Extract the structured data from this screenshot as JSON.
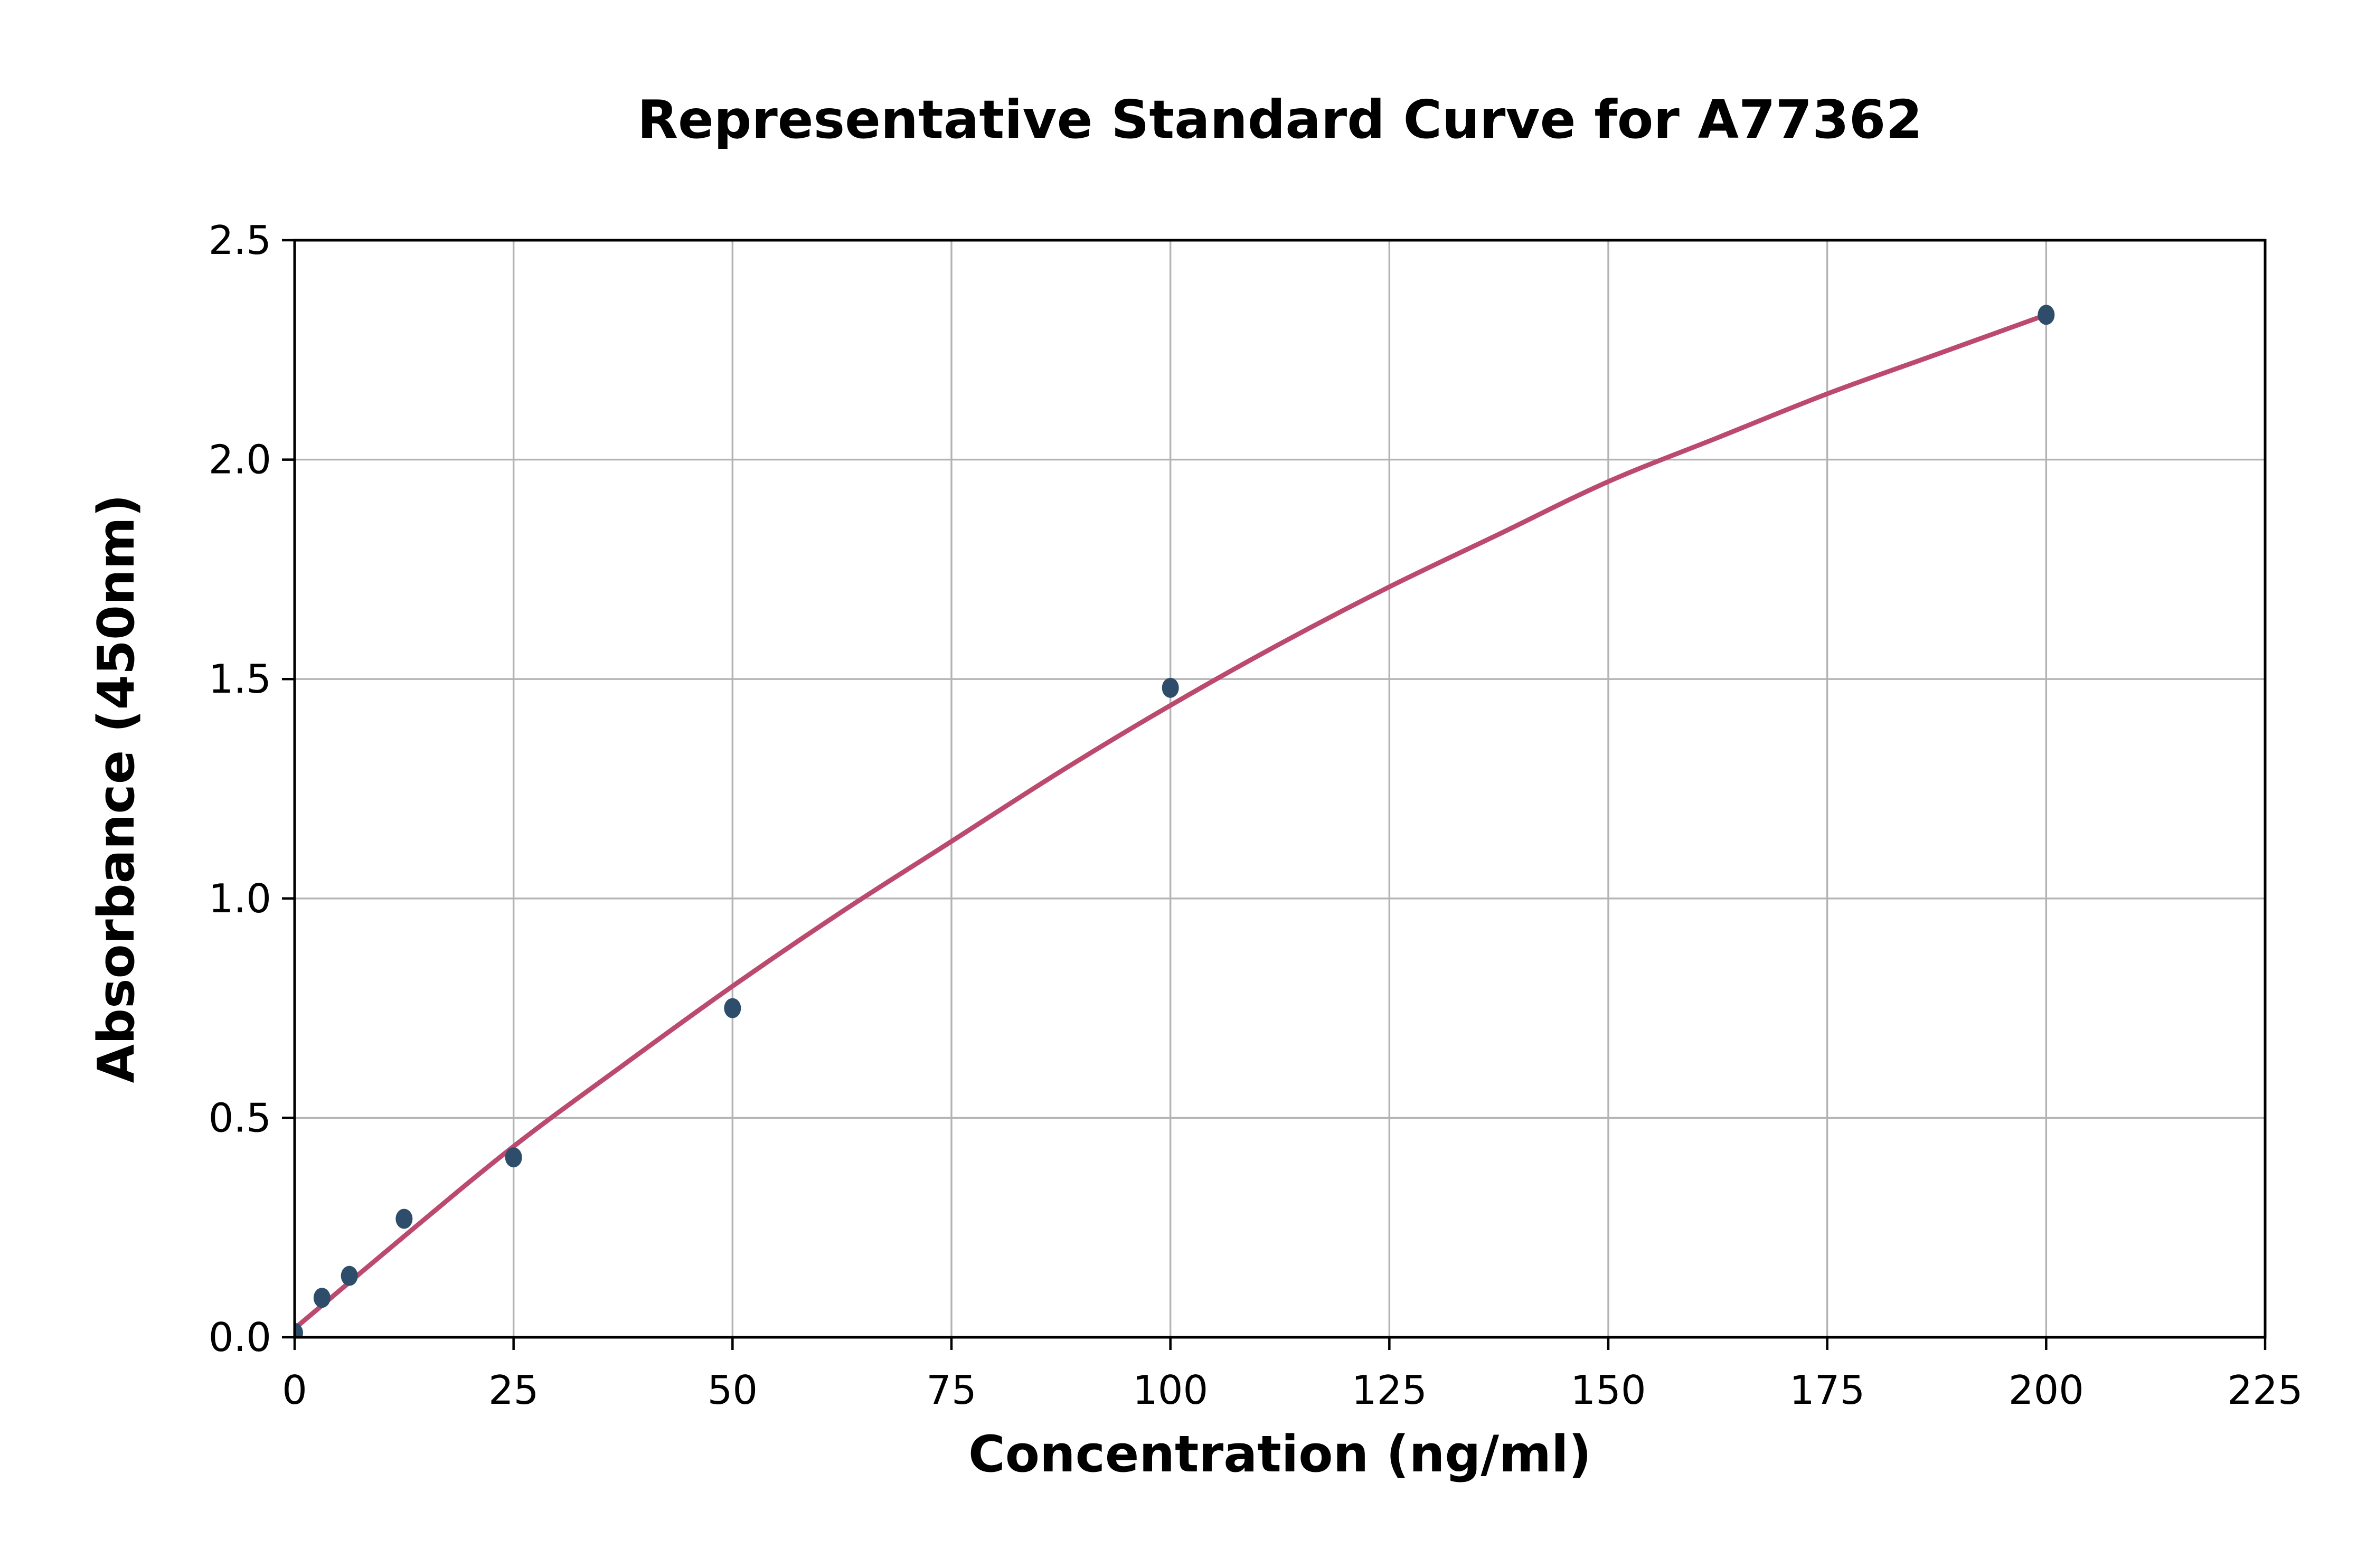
{
  "chart_data": {
    "type": "scatter",
    "title": "Representative Standard Curve for A77362",
    "xlabel": "Concentration (ng/ml)",
    "ylabel": "Absorbance (450nm)",
    "xlim": [
      0,
      225
    ],
    "ylim": [
      0,
      2.5
    ],
    "grid": true,
    "legend": null,
    "x_ticks": [
      {
        "v": 0,
        "label": "0"
      },
      {
        "v": 25,
        "label": "25"
      },
      {
        "v": 50,
        "label": "50"
      },
      {
        "v": 75,
        "label": "75"
      },
      {
        "v": 100,
        "label": "100"
      },
      {
        "v": 125,
        "label": "125"
      },
      {
        "v": 150,
        "label": "150"
      },
      {
        "v": 175,
        "label": "175"
      },
      {
        "v": 200,
        "label": "200"
      },
      {
        "v": 225,
        "label": "225"
      }
    ],
    "y_ticks": [
      {
        "v": 0.0,
        "label": "0.0"
      },
      {
        "v": 0.5,
        "label": "0.5"
      },
      {
        "v": 1.0,
        "label": "1.0"
      },
      {
        "v": 1.5,
        "label": "1.5"
      },
      {
        "v": 2.0,
        "label": "2.0"
      },
      {
        "v": 2.5,
        "label": "2.5"
      }
    ],
    "series": [
      {
        "name": "standard-points",
        "type": "scatter",
        "color": "#2e4d6b",
        "points": [
          [
            0,
            0.01
          ],
          [
            3.125,
            0.09
          ],
          [
            6.25,
            0.14
          ],
          [
            12.5,
            0.27
          ],
          [
            25,
            0.41
          ],
          [
            50,
            0.75
          ],
          [
            100,
            1.48
          ],
          [
            200,
            2.33
          ]
        ]
      },
      {
        "name": "fit-curve",
        "type": "line",
        "color": "#bc4a6e",
        "points": [
          [
            0,
            0.02
          ],
          [
            12.5,
            0.23
          ],
          [
            25,
            0.435
          ],
          [
            37.5,
            0.62
          ],
          [
            50,
            0.8
          ],
          [
            62.5,
            0.97
          ],
          [
            75,
            1.13
          ],
          [
            87.5,
            1.29
          ],
          [
            100,
            1.44
          ],
          [
            112.5,
            1.58
          ],
          [
            125,
            1.71
          ],
          [
            137.5,
            1.83
          ],
          [
            150,
            1.95
          ],
          [
            162.5,
            2.05
          ],
          [
            175,
            2.15
          ],
          [
            187.5,
            2.24
          ],
          [
            200,
            2.33
          ]
        ]
      }
    ],
    "colors": {
      "grid": "#b3b3b3",
      "axis": "#000000",
      "text": "#000000",
      "background": "#ffffff",
      "marker": "#2e4d6b",
      "curve": "#bc4a6e"
    }
  }
}
